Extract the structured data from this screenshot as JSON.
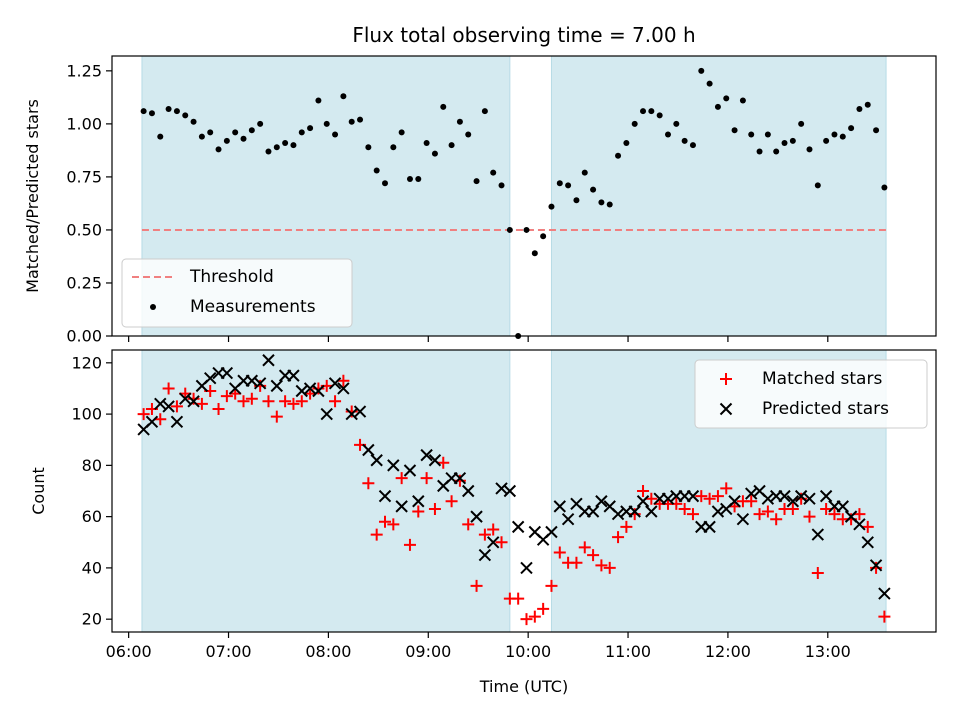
{
  "chart_data": [
    {
      "type": "scatter",
      "title": "Flux total observing time = 7.00 h",
      "xlabel": "",
      "ylabel": "Matched/Predicted stars",
      "xlim": [
        "05:50",
        "14:05"
      ],
      "ylim": [
        0,
        1.32
      ],
      "yticks": [
        0.0,
        0.25,
        0.5,
        0.75,
        1.0,
        1.25
      ],
      "ytick_labels": [
        "0.00",
        "0.25",
        "0.50",
        "0.75",
        "1.00",
        "1.25"
      ],
      "shaded_intervals": [
        [
          "06:08",
          "09:49"
        ],
        [
          "10:14",
          "13:35"
        ]
      ],
      "shade_color": "#d4eaf0",
      "legend_position": "lower-left",
      "legend": [
        {
          "label": "Threshold",
          "style": "dashed-line",
          "color": "#f08080"
        },
        {
          "label": "Measurements",
          "style": "dot",
          "color": "#000000"
        }
      ],
      "threshold": {
        "name": "Threshold",
        "value": 0.5,
        "x_range": [
          "06:08",
          "13:35"
        ],
        "color": "#f08080"
      },
      "series": [
        {
          "name": "Measurements",
          "marker": "dot",
          "color": "#000000",
          "x": [
            "06:09",
            "06:14",
            "06:19",
            "06:24",
            "06:29",
            "06:34",
            "06:39",
            "06:44",
            "06:49",
            "06:54",
            "06:59",
            "07:04",
            "07:09",
            "07:14",
            "07:19",
            "07:24",
            "07:29",
            "07:34",
            "07:39",
            "07:44",
            "07:49",
            "07:54",
            "07:59",
            "08:04",
            "08:09",
            "08:14",
            "08:19",
            "08:24",
            "08:29",
            "08:34",
            "08:39",
            "08:44",
            "08:49",
            "08:54",
            "08:59",
            "09:04",
            "09:09",
            "09:14",
            "09:19",
            "09:24",
            "09:29",
            "09:34",
            "09:39",
            "09:44",
            "09:49",
            "09:54",
            "09:59",
            "10:04",
            "10:09",
            "10:14",
            "10:19",
            "10:24",
            "10:29",
            "10:34",
            "10:39",
            "10:44",
            "10:49",
            "10:54",
            "10:59",
            "11:04",
            "11:09",
            "11:14",
            "11:19",
            "11:24",
            "11:29",
            "11:34",
            "11:39",
            "11:44",
            "11:49",
            "11:54",
            "11:59",
            "12:04",
            "12:09",
            "12:14",
            "12:19",
            "12:24",
            "12:29",
            "12:34",
            "12:39",
            "12:44",
            "12:49",
            "12:54",
            "12:59",
            "13:04",
            "13:09",
            "13:14",
            "13:19",
            "13:24",
            "13:29",
            "13:34"
          ],
          "y": [
            1.06,
            1.05,
            0.94,
            1.07,
            1.06,
            1.04,
            1.01,
            0.94,
            0.96,
            0.88,
            0.92,
            0.96,
            0.93,
            0.97,
            1.0,
            0.87,
            0.89,
            0.91,
            0.9,
            0.96,
            0.98,
            1.11,
            1.0,
            0.95,
            1.13,
            1.01,
            1.02,
            0.89,
            0.78,
            0.72,
            0.89,
            0.96,
            0.74,
            0.74,
            0.91,
            0.86,
            1.08,
            0.9,
            1.01,
            0.95,
            0.73,
            1.06,
            0.77,
            0.71,
            0.5,
            0.0,
            0.5,
            0.39,
            0.47,
            0.61,
            0.72,
            0.71,
            0.64,
            0.77,
            0.69,
            0.63,
            0.62,
            0.85,
            0.91,
            1.0,
            1.06,
            1.06,
            1.04,
            0.95,
            1.0,
            0.92,
            0.9,
            1.25,
            1.19,
            1.08,
            1.12,
            0.97,
            1.11,
            0.95,
            0.87,
            0.95,
            0.87,
            0.91,
            0.92,
            1.0,
            0.88,
            0.71,
            0.92,
            0.95,
            0.94,
            0.98,
            1.07,
            1.09,
            0.97,
            0.7
          ]
        }
      ]
    },
    {
      "type": "scatter",
      "title": "",
      "xlabel": "Time (UTC)",
      "ylabel": "Count",
      "xlim": [
        "05:50",
        "14:05"
      ],
      "ylim": [
        15,
        125
      ],
      "yticks": [
        20,
        40,
        60,
        80,
        100,
        120
      ],
      "ytick_labels": [
        "20",
        "40",
        "60",
        "80",
        "100",
        "120"
      ],
      "xticks": [
        "06:00",
        "07:00",
        "08:00",
        "09:00",
        "10:00",
        "11:00",
        "12:00",
        "13:00"
      ],
      "xtick_labels": [
        "06:00",
        "07:00",
        "08:00",
        "09:00",
        "10:00",
        "11:00",
        "12:00",
        "13:00"
      ],
      "shaded_intervals": [
        [
          "06:08",
          "09:49"
        ],
        [
          "10:14",
          "13:35"
        ]
      ],
      "shade_color": "#d4eaf0",
      "legend_position": "top-right",
      "legend": [
        {
          "label": "Matched stars",
          "style": "plus",
          "color": "#ff0000"
        },
        {
          "label": "Predicted stars",
          "style": "x",
          "color": "#000000"
        }
      ],
      "series": [
        {
          "name": "Matched stars",
          "marker": "plus",
          "color": "#ff0000",
          "x": [
            "06:09",
            "06:14",
            "06:19",
            "06:24",
            "06:29",
            "06:34",
            "06:39",
            "06:44",
            "06:49",
            "06:54",
            "06:59",
            "07:04",
            "07:09",
            "07:14",
            "07:19",
            "07:24",
            "07:29",
            "07:34",
            "07:39",
            "07:44",
            "07:49",
            "07:54",
            "07:59",
            "08:04",
            "08:09",
            "08:14",
            "08:19",
            "08:24",
            "08:29",
            "08:34",
            "08:39",
            "08:44",
            "08:49",
            "08:54",
            "08:59",
            "09:04",
            "09:09",
            "09:14",
            "09:19",
            "09:24",
            "09:29",
            "09:34",
            "09:39",
            "09:44",
            "09:49",
            "09:54",
            "09:59",
            "10:04",
            "10:09",
            "10:14",
            "10:19",
            "10:24",
            "10:29",
            "10:34",
            "10:39",
            "10:44",
            "10:49",
            "10:54",
            "10:59",
            "11:04",
            "11:09",
            "11:14",
            "11:19",
            "11:24",
            "11:29",
            "11:34",
            "11:39",
            "11:44",
            "11:49",
            "11:54",
            "11:59",
            "12:04",
            "12:09",
            "12:14",
            "12:19",
            "12:24",
            "12:29",
            "12:34",
            "12:39",
            "12:44",
            "12:49",
            "12:54",
            "12:59",
            "13:04",
            "13:09",
            "13:14",
            "13:19",
            "13:24",
            "13:29",
            "13:34"
          ],
          "y": [
            100,
            102,
            98,
            110,
            103,
            108,
            106,
            104,
            109,
            102,
            107,
            108,
            105,
            106,
            111,
            105,
            99,
            105,
            104,
            105,
            108,
            110,
            111,
            105,
            113,
            101,
            88,
            73,
            53,
            58,
            57,
            75,
            49,
            62,
            75,
            63,
            81,
            66,
            74,
            57,
            33,
            53,
            55,
            50,
            28,
            28,
            20,
            21,
            24,
            33,
            46,
            42,
            42,
            48,
            45,
            41,
            40,
            52,
            56,
            61,
            70,
            67,
            65,
            65,
            65,
            63,
            61,
            68,
            67,
            68,
            71,
            64,
            66,
            66,
            61,
            62,
            59,
            63,
            63,
            67,
            60,
            38,
            63,
            61,
            59,
            59,
            61,
            56,
            40,
            21
          ]
        },
        {
          "name": "Predicted stars",
          "marker": "x",
          "color": "#000000",
          "x": [
            "06:09",
            "06:14",
            "06:19",
            "06:24",
            "06:29",
            "06:34",
            "06:39",
            "06:44",
            "06:49",
            "06:54",
            "06:59",
            "07:04",
            "07:09",
            "07:14",
            "07:19",
            "07:24",
            "07:29",
            "07:34",
            "07:39",
            "07:44",
            "07:49",
            "07:54",
            "07:59",
            "08:04",
            "08:09",
            "08:14",
            "08:19",
            "08:24",
            "08:29",
            "08:34",
            "08:39",
            "08:44",
            "08:49",
            "08:54",
            "08:59",
            "09:04",
            "09:09",
            "09:14",
            "09:19",
            "09:24",
            "09:29",
            "09:34",
            "09:39",
            "09:44",
            "09:49",
            "09:54",
            "09:59",
            "10:04",
            "10:09",
            "10:14",
            "10:19",
            "10:24",
            "10:29",
            "10:34",
            "10:39",
            "10:44",
            "10:49",
            "10:54",
            "10:59",
            "11:04",
            "11:09",
            "11:14",
            "11:19",
            "11:24",
            "11:29",
            "11:34",
            "11:39",
            "11:44",
            "11:49",
            "11:54",
            "11:59",
            "12:04",
            "12:09",
            "12:14",
            "12:19",
            "12:24",
            "12:29",
            "12:34",
            "12:39",
            "12:44",
            "12:49",
            "12:54",
            "12:59",
            "13:04",
            "13:09",
            "13:14",
            "13:19",
            "13:24",
            "13:29",
            "13:34"
          ],
          "y": [
            94,
            97,
            104,
            103,
            97,
            106,
            105,
            111,
            114,
            116,
            116,
            110,
            113,
            113,
            112,
            121,
            111,
            115,
            115,
            109,
            110,
            109,
            100,
            112,
            110,
            100,
            101,
            86,
            82,
            68,
            80,
            64,
            78,
            66,
            84,
            82,
            72,
            75,
            75,
            70,
            60,
            45,
            50,
            71,
            70,
            56,
            40,
            54,
            51,
            54,
            64,
            59,
            65,
            62,
            62,
            66,
            64,
            61,
            62,
            62,
            66,
            62,
            67,
            67,
            68,
            68,
            68,
            56,
            56,
            62,
            63,
            66,
            59,
            69,
            70,
            67,
            68,
            68,
            66,
            68,
            67,
            53,
            68,
            64,
            64,
            60,
            57,
            50,
            41,
            30
          ]
        }
      ]
    }
  ]
}
